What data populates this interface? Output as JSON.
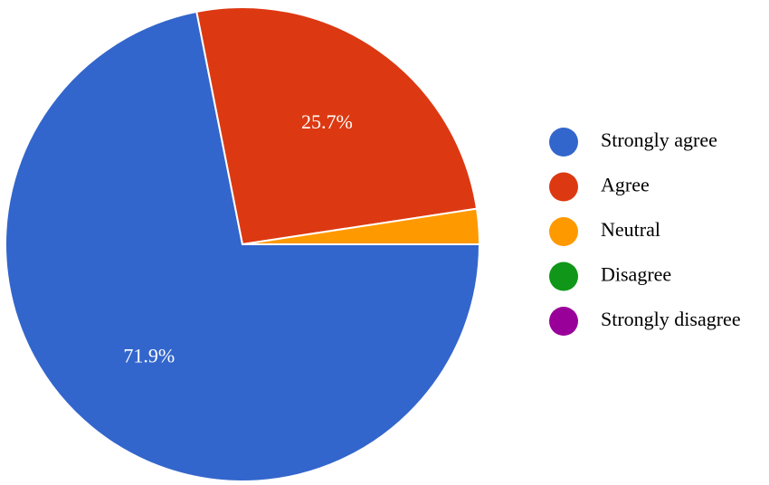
{
  "chart_data": {
    "type": "pie",
    "categories": [
      "Strongly agree",
      "Agree",
      "Neutral",
      "Disagree",
      "Strongly disagree"
    ],
    "values": [
      71.9,
      25.7,
      2.4,
      0,
      0
    ],
    "value_labels": [
      "71.9%",
      "25.7%",
      null,
      null,
      null
    ],
    "colors": [
      "#3366cc",
      "#dc3912",
      "#ff9900",
      "#109618",
      "#990099"
    ],
    "legend": "right"
  }
}
